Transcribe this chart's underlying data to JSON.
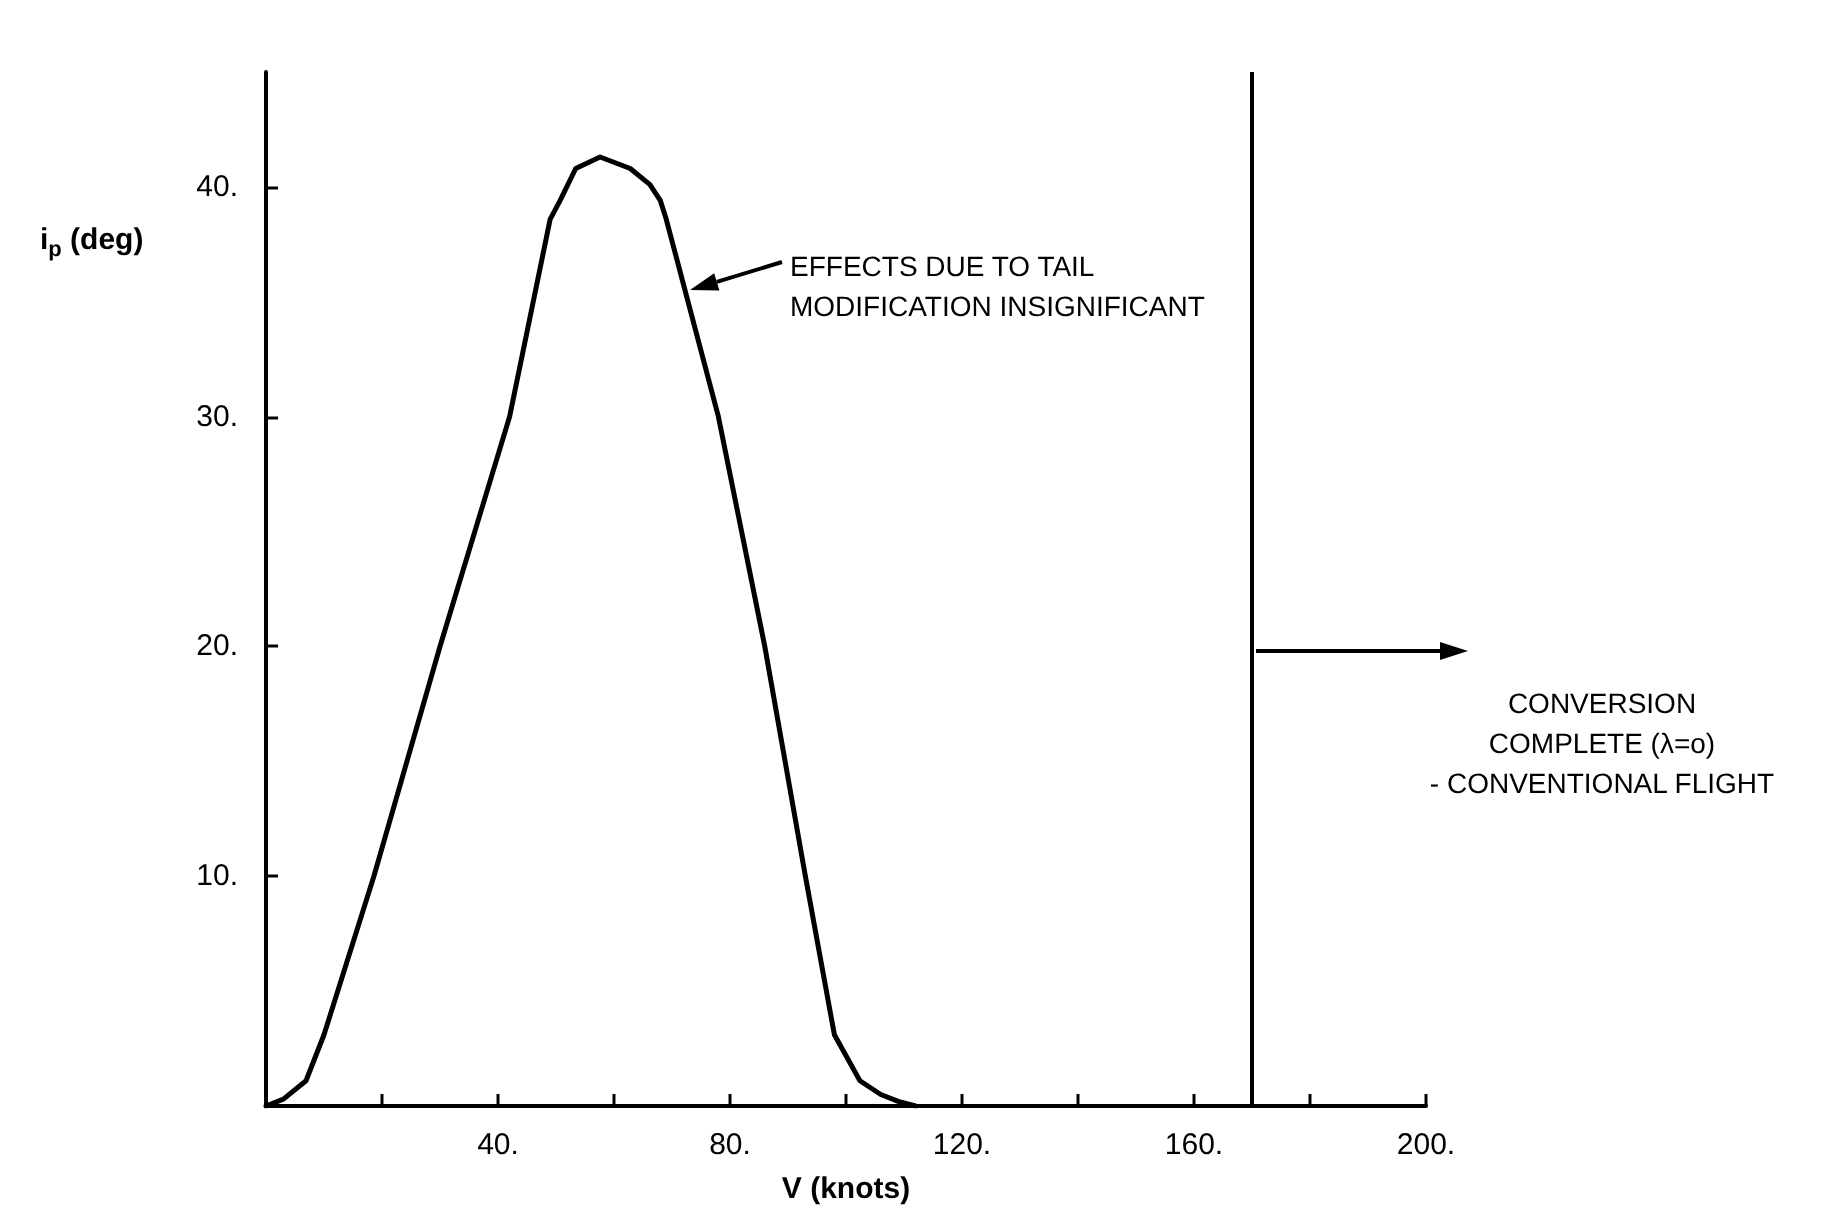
{
  "chart_data": {
    "type": "line",
    "xlabel": "V (knots)",
    "ylabel": "i$_{p}$ (deg)",
    "x": [
      0,
      3,
      6.9,
      10,
      18.6,
      30,
      42,
      49,
      50.7,
      53.4,
      57.6,
      62.8,
      66.2,
      68,
      69,
      78,
      86,
      93,
      98,
      102.4,
      106,
      109,
      112
    ],
    "series": [
      {
        "color": "#000000",
        "values": [
          0,
          0.3,
          1.1,
          3.1,
          10,
          20,
          30,
          38.6,
          39.4,
          40.8,
          41.3,
          40.8,
          40.1,
          39.4,
          38.6,
          30,
          20,
          10,
          3.1,
          1.1,
          0.5,
          0.2,
          0
        ]
      }
    ],
    "xlim": [
      0,
      200
    ],
    "ylim": [
      0,
      45
    ],
    "xticks": [
      {
        "value": 0,
        "label": null
      },
      {
        "value": 20,
        "label": null
      },
      {
        "value": 40,
        "label": "40."
      },
      {
        "value": 60,
        "label": null
      },
      {
        "value": 80,
        "label": "80."
      },
      {
        "value": 100,
        "label": null
      },
      {
        "value": 120,
        "label": "120."
      },
      {
        "value": 140,
        "label": null
      },
      {
        "value": 160,
        "label": "160."
      },
      {
        "value": 180,
        "label": null
      },
      {
        "value": 200,
        "label": "200."
      }
    ],
    "yticks": [
      {
        "value": 0,
        "label": null
      },
      {
        "value": 10,
        "label": "10."
      },
      {
        "value": 20,
        "label": "20."
      },
      {
        "value": 30,
        "label": "30."
      },
      {
        "value": 40,
        "label": "40."
      }
    ],
    "annotations": [
      "EFFECTS DUE TO TAIL\nMODIFICATION INSIGNIFICANT"
    ],
    "ref_lines": [
      {
        "axis": "x",
        "value": 170,
        "label": "CONVERSION\nCOMPLETE (λ=o)\n- CONVENTIONAL FLIGHT",
        "color": "#000000"
      }
    ],
    "grid": false,
    "marker": "none",
    "line_style": "solid"
  }
}
